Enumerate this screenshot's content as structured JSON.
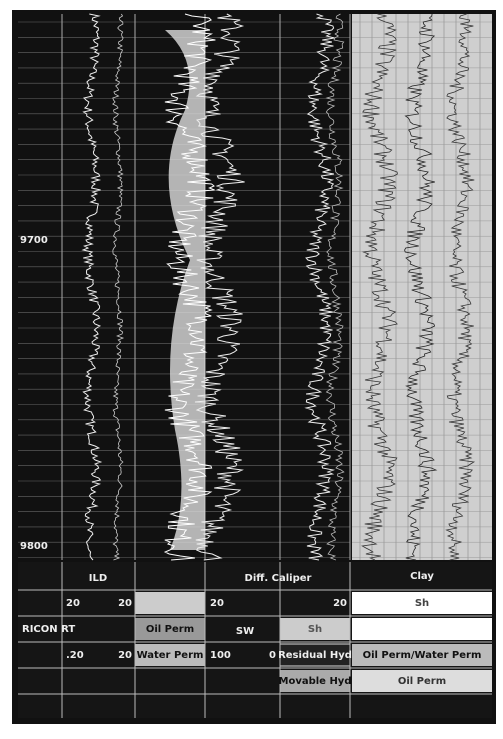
{
  "depth_labels": [
    "9700",
    "9800"
  ],
  "legend": {
    "row1": [
      "ILD",
      "Diff. Caliper",
      "Clay"
    ],
    "row2": [
      "20",
      "20",
      "20",
      "20",
      "Sh"
    ],
    "row3": [
      "RICON RT",
      "Oil Perm",
      "SW",
      "Sh"
    ],
    "row4": [
      ".20",
      "20",
      "Water Perm",
      "100",
      "0",
      "Residual Hyd",
      "Oil Perm/Water Perm"
    ],
    "row5": [
      "Movable Hyd",
      "Oil Perm"
    ]
  }
}
